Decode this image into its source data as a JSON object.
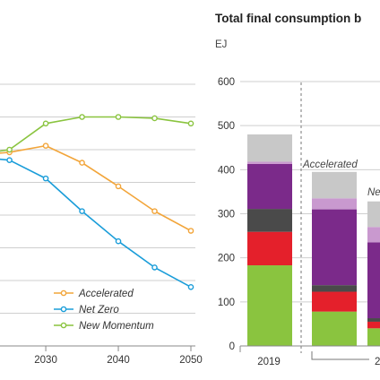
{
  "chart_data": [
    {
      "type": "line",
      "x": [
        2019,
        2025,
        2030,
        2035,
        2040,
        2045,
        2050
      ],
      "x_ticks": [
        "2030",
        "2040",
        "2050"
      ],
      "series": [
        {
          "name": "Accelerated",
          "color": "#f2a53a",
          "values": [
            145,
            148,
            153,
            140,
            122,
            103,
            88
          ]
        },
        {
          "name": "Net Zero",
          "color": "#1a9dd9",
          "values": [
            145,
            142,
            128,
            103,
            80,
            60,
            45
          ]
        },
        {
          "name": "New Momentum",
          "color": "#8ac43f",
          "values": [
            145,
            150,
            170,
            175,
            175,
            174,
            170
          ]
        }
      ],
      "grid": true,
      "legend_position": "bottom-right"
    },
    {
      "type": "bar",
      "title": "Total final consumption b",
      "unit": "EJ",
      "ylim": [
        0,
        600
      ],
      "yticks": [
        "0",
        "100",
        "200",
        "300",
        "400",
        "500",
        "600"
      ],
      "categories": [
        "2019",
        "Accelerated",
        "Ne"
      ],
      "x_ticks": [
        "2019",
        "2"
      ],
      "annotations": [
        "Accelerated",
        "Ne"
      ],
      "stack_colors": [
        "#8ac43f",
        "#e4202b",
        "#4a4a4a",
        "#7b2a8a",
        "#c999cf",
        "#c8c8c8"
      ],
      "series": [
        {
          "values": [
            183,
            78,
            40
          ]
        },
        {
          "values": [
            76,
            45,
            15
          ]
        },
        {
          "values": [
            52,
            15,
            8
          ]
        },
        {
          "values": [
            102,
            172,
            172
          ]
        },
        {
          "values": [
            5,
            25,
            35
          ]
        },
        {
          "values": [
            62,
            60,
            58
          ]
        }
      ]
    }
  ]
}
